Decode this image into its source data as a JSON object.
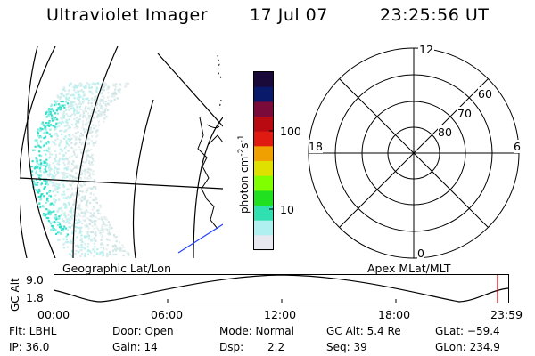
{
  "header": {
    "title": "Ultraviolet Imager",
    "date": "17 Jul 07",
    "time": "23:25:56 UT"
  },
  "geo_panel": {
    "label": "Geographic Lat/Lon"
  },
  "colorbar": {
    "unit_prefix": "photon cm",
    "exp1": "-2",
    "mid": "s",
    "exp2": "-1",
    "tick_100": "100",
    "tick_10": "10",
    "colors": [
      "#1a0a3a",
      "#0a1a6a",
      "#7a0a3a",
      "#b80a10",
      "#e01a10",
      "#f0a000",
      "#e0e000",
      "#80ff00",
      "#20e020",
      "#30e0b0",
      "#b0f0f0",
      "#e8e8f0"
    ]
  },
  "polar_panel": {
    "label": "Apex MLat/MLT",
    "mlt_top": "12",
    "mlt_left": "18",
    "mlt_right": "6",
    "mlt_bottom": "0",
    "lat_60": "60",
    "lat_70": "70",
    "lat_80": "80"
  },
  "alt_plot": {
    "ylabel": "GC Alt",
    "ytick_top": "9.0",
    "ytick_bottom": "1.8",
    "xticks": [
      "00:00",
      "06:00",
      "12:00",
      "18:00",
      "23:59"
    ],
    "current_marker_color": "#cc0000"
  },
  "info": {
    "flt": "Flt: LBHL",
    "ip": "IP: 36.0",
    "door": "Door: Open",
    "gain": "Gain: 14",
    "mode": "Mode: Normal",
    "dsp_label": "Dsp:",
    "dsp_value": "2.2",
    "gc_alt": "GC Alt: 5.4 Re",
    "seq": "Seq: 39",
    "glat": "GLat: −59.4",
    "glon": "GLon: 234.9"
  }
}
